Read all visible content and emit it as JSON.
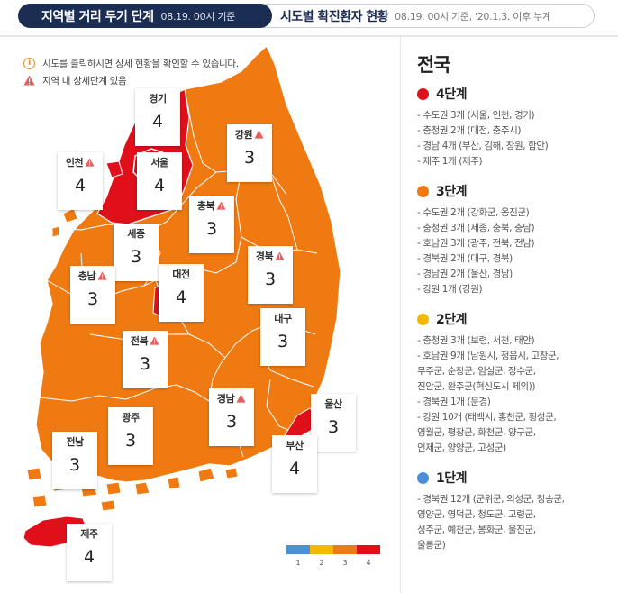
{
  "tabs": {
    "active": {
      "title": "지역별 거리 두기 단계",
      "subtitle": "08.19. 00시 기준"
    },
    "inactive": {
      "title": "시도별 확진환자 현황",
      "subtitle": "08.19. 00시 기준, '20.1.3. 이후 누계"
    }
  },
  "notices": {
    "click_hint": "시도를 클릭하시면 상세 현황을 확인할 수 있습니다.",
    "warning_hint": "지역 내 상세단계 있음"
  },
  "colors": {
    "level1": "#4a8fd8",
    "level2": "#f5b800",
    "level3": "#f07a12",
    "level4": "#e0101b",
    "warning": "#e85c5c"
  },
  "regions": [
    {
      "name": "경기",
      "level": "4",
      "warning": false
    },
    {
      "name": "강원",
      "level": "3",
      "warning": true
    },
    {
      "name": "인천",
      "level": "4",
      "warning": true
    },
    {
      "name": "서울",
      "level": "4",
      "warning": false
    },
    {
      "name": "충북",
      "level": "3",
      "warning": true
    },
    {
      "name": "세종",
      "level": "3",
      "warning": false
    },
    {
      "name": "대전",
      "level": "4",
      "warning": false
    },
    {
      "name": "경북",
      "level": "3",
      "warning": true
    },
    {
      "name": "충남",
      "level": "3",
      "warning": true
    },
    {
      "name": "대구",
      "level": "3",
      "warning": false
    },
    {
      "name": "전북",
      "level": "3",
      "warning": true
    },
    {
      "name": "울산",
      "level": "3",
      "warning": false
    },
    {
      "name": "경남",
      "level": "3",
      "warning": true
    },
    {
      "name": "광주",
      "level": "3",
      "warning": false
    },
    {
      "name": "전남",
      "level": "3",
      "warning": false
    },
    {
      "name": "부산",
      "level": "4",
      "warning": false
    },
    {
      "name": "제주",
      "level": "4",
      "warning": false
    }
  ],
  "legend": [
    "1",
    "2",
    "3",
    "4"
  ],
  "panel": {
    "title": "전국",
    "levels": [
      {
        "label": "4단계",
        "items": [
          "- 수도권 3개 (서울, 인천, 경기)",
          "- 충청권 2개 (대전, 충주시)",
          "- 경남 4개 (부산, 김해, 창원, 함안)",
          "- 제주 1개 (제주)"
        ]
      },
      {
        "label": "3단계",
        "items": [
          "- 수도권 2개 (강화군, 옹진군)",
          "- 충청권 3개 (세종, 충북, 충남)",
          "- 호남권 3개 (광주, 전북, 전남)",
          "- 경북권 2개 (대구, 경북)",
          "- 경남권 2개 (울산, 경남)",
          "- 강원 1개 (강원)"
        ]
      },
      {
        "label": "2단계",
        "items": [
          "- 충청권 3개 (보령, 서천, 태안)",
          "- 호남권 9개 (남원시, 정읍시, 고창군,",
          "무주군, 순창군, 임실군, 장수군,",
          "진안군, 완주군(혁신도시 제외))",
          "- 경북권 1개 (문경)",
          "- 강원 10개 (태백시, 홍천군, 횡성군,",
          "영월군, 평창군, 화천군, 양구군,",
          "인제군, 양양군, 고성군)"
        ]
      },
      {
        "label": "1단계",
        "items": [
          "- 경북권 12개 (군위군, 의성군, 청송군,",
          "영양군, 영덕군, 청도군, 고령군,",
          "성주군, 예천군, 봉화군, 울진군,",
          "울릉군)"
        ]
      }
    ]
  }
}
